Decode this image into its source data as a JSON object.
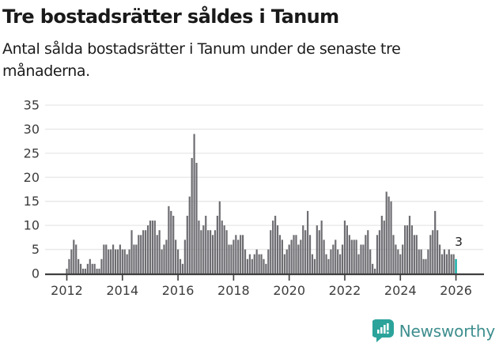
{
  "header": {
    "title": "Tre bostadsrätter såldes i Tanum",
    "subtitle": "Antal sålda bostadsrätter i Tanum under de senaste tre månaderna."
  },
  "chart_data": {
    "type": "bar",
    "title": "Tre bostadsrätter såldes i Tanum",
    "subtitle": "Antal sålda bostadsrätter i Tanum under de senaste tre månaderna.",
    "frequency": "monthly",
    "start_period": "2012-01",
    "end_period": "2026-01",
    "values": [
      1,
      3,
      5,
      7,
      6,
      3,
      2,
      1,
      1,
      2,
      3,
      2,
      2,
      1,
      1,
      3,
      6,
      6,
      5,
      5,
      6,
      5,
      5,
      6,
      5,
      5,
      4,
      5,
      9,
      6,
      6,
      8,
      8,
      9,
      9,
      10,
      11,
      11,
      11,
      8,
      9,
      5,
      6,
      7,
      14,
      13,
      12,
      7,
      5,
      3,
      2,
      7,
      12,
      16,
      24,
      29,
      23,
      11,
      9,
      10,
      12,
      9,
      9,
      8,
      9,
      12,
      15,
      11,
      10,
      9,
      6,
      6,
      7,
      8,
      7,
      8,
      8,
      5,
      3,
      4,
      3,
      4,
      5,
      4,
      4,
      3,
      2,
      5,
      9,
      11,
      12,
      10,
      8,
      7,
      4,
      5,
      6,
      7,
      8,
      8,
      6,
      7,
      10,
      9,
      13,
      8,
      4,
      3,
      10,
      9,
      11,
      7,
      4,
      3,
      5,
      6,
      7,
      5,
      4,
      6,
      11,
      10,
      8,
      7,
      7,
      7,
      4,
      6,
      6,
      8,
      9,
      5,
      2,
      1,
      8,
      9,
      12,
      11,
      17,
      16,
      15,
      8,
      6,
      5,
      4,
      6,
      10,
      10,
      12,
      10,
      8,
      8,
      5,
      5,
      3,
      3,
      5,
      8,
      9,
      13,
      9,
      6,
      4,
      5,
      4,
      5,
      4,
      4,
      3
    ],
    "highlight_last": true,
    "highlight_value_label": "3",
    "x_tick_labels": [
      "2012",
      "2014",
      "2016",
      "2018",
      "2020",
      "2022",
      "2024",
      "2026"
    ],
    "y_ticks": [
      0,
      5,
      10,
      15,
      20,
      25,
      30,
      35
    ],
    "ylim": [
      0,
      35
    ],
    "grid": true,
    "legend": "none",
    "bar_color": "#6d6d72",
    "highlight_color": "#00a49c",
    "grid_color": "#e7e7e7",
    "axis_color": "#3f3f3f",
    "tick_label_color": "#3d3d3d"
  },
  "footer": {
    "brand": "Newsworthy",
    "logo_color": "#2ba39b",
    "text_color": "#3e8e8e"
  }
}
